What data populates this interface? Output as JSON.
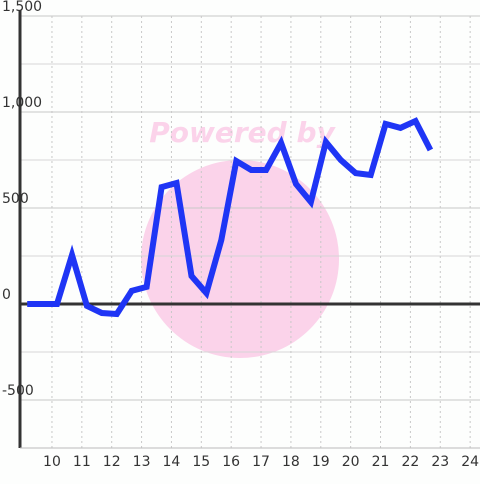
{
  "chart_data": {
    "type": "line",
    "watermark": "Powered by",
    "x": [
      9.17,
      9.67,
      10.17,
      10.67,
      11.17,
      11.67,
      12.17,
      12.67,
      13.17,
      13.67,
      14.17,
      14.67,
      15.17,
      15.67,
      16.17,
      16.67,
      17.17,
      17.67,
      18.17,
      18.67,
      19.17,
      19.67,
      20.17,
      20.67,
      21.17,
      21.67,
      22.17,
      22.67
    ],
    "series": [
      {
        "color": "#1f35f5",
        "values": [
          0,
          0,
          0,
          255,
          -10,
          -47,
          -52,
          68,
          89,
          609,
          630,
          146,
          57,
          333,
          745,
          698,
          698,
          839,
          625,
          531,
          844,
          750,
          682,
          672,
          938,
          917,
          953,
          802
        ]
      }
    ],
    "xlim": [
      8.93,
      24.33
    ],
    "ylim": [
      -750,
      1500
    ],
    "xticks": [
      10,
      11,
      12,
      13,
      14,
      15,
      16,
      17,
      18,
      19,
      20,
      21,
      22,
      23,
      24
    ],
    "yticks": [
      -500,
      0,
      500,
      {
        "value": 1000,
        "label": "1,000"
      },
      {
        "value": 1500,
        "label": "1,500"
      }
    ],
    "grid": true
  }
}
